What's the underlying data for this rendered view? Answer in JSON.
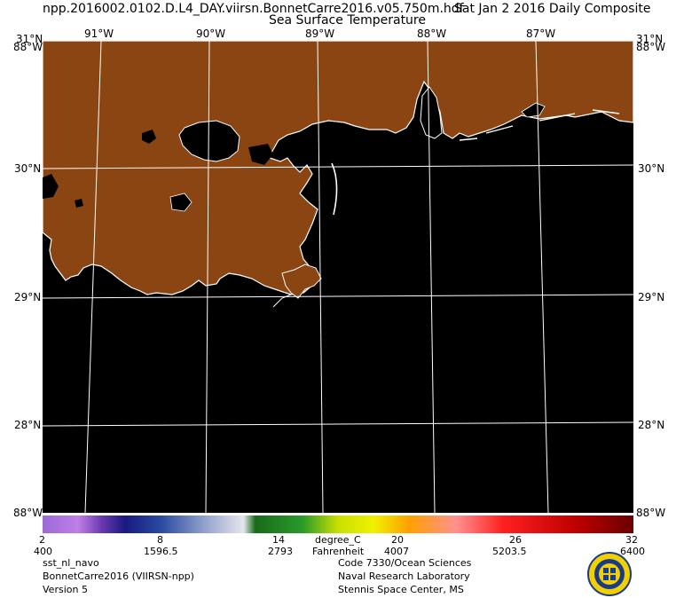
{
  "header": {
    "filename": "npp.2016002.0102.D.L4_DAY.viirsn.BonnetCarre2016.v05.750m.hdf",
    "date": "Sat Jan  2 2016 Daily Composite",
    "product": "Sea Surface Temperature"
  },
  "map": {
    "longitude_labels": [
      "91°W",
      "90°W",
      "89°W",
      "88°W",
      "87°W"
    ],
    "latitude_labels": [
      "30°N",
      "29°N",
      "28°N"
    ],
    "corner_labels": {
      "top_left": "31°N",
      "top_left_lon": "88°W",
      "top_right": "31°N",
      "top_right_lon": "88°W",
      "bottom_left": "88°W",
      "bottom_right": "88°W"
    },
    "colors": {
      "land": "#8b4513",
      "water": "#000000",
      "grid": "#ffffff",
      "coast": "#ffffff"
    }
  },
  "colorbar": {
    "celsius_ticks": [
      "2",
      "8",
      "14",
      "20",
      "26",
      "32"
    ],
    "fahrenheit_ticks": [
      "400",
      "1596.5",
      "2793",
      "4007",
      "5203.5",
      "6400"
    ],
    "unit_c": "degree_C",
    "unit_f": "Fahrenheit"
  },
  "footer": {
    "left": [
      "sst_nl_navo",
      "BonnetCarre2016 (VIIRSN-npp)",
      "Version 5"
    ],
    "right": [
      "Code 7330/Ocean Sciences",
      "Naval Research Laboratory",
      "Stennis Space Center, MS"
    ]
  },
  "seal": {
    "name": "nrl-seal-icon"
  }
}
